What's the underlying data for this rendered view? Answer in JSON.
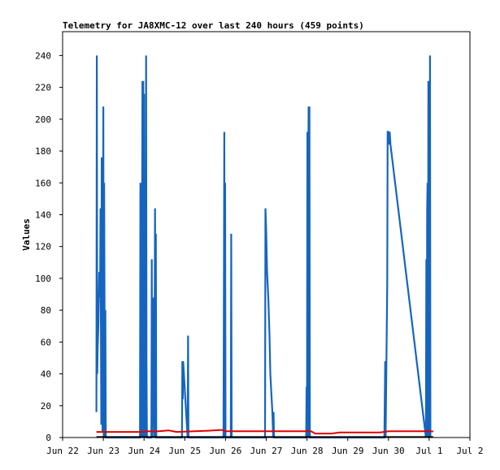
{
  "chart_data": {
    "type": "line",
    "title": "Telemetry for JA8XMC-12 over last 240 hours (459 points)",
    "ylabel": "Values",
    "xlabel": "",
    "ylim": [
      0,
      255
    ],
    "y_ticks": [
      0,
      20,
      40,
      60,
      80,
      100,
      120,
      140,
      160,
      180,
      200,
      220,
      240
    ],
    "x_ticks": [
      {
        "label": "Jun 22",
        "day": 0
      },
      {
        "label": "Jun 23",
        "day": 1
      },
      {
        "label": "Jun 24",
        "day": 2
      },
      {
        "label": "Jun 25",
        "day": 3
      },
      {
        "label": "Jun 26",
        "day": 4
      },
      {
        "label": "Jun 27",
        "day": 5
      },
      {
        "label": "Jun 28",
        "day": 6
      },
      {
        "label": "Jun 29",
        "day": 7
      },
      {
        "label": "Jun 30",
        "day": 8
      },
      {
        "label": "Jul 1",
        "day": 9
      },
      {
        "label": "Jul 2",
        "day": 10
      }
    ],
    "xlim": [
      0,
      10
    ],
    "grid": false,
    "series": [
      {
        "color": "#1565c0",
        "points": [
          [
            0.83,
            16
          ],
          [
            0.84,
            240
          ],
          [
            0.85,
            40
          ],
          [
            0.86,
            56
          ],
          [
            0.88,
            72
          ],
          [
            0.9,
            104
          ],
          [
            0.92,
            88
          ],
          [
            0.93,
            144
          ],
          [
            0.95,
            8
          ],
          [
            0.96,
            176
          ],
          [
            0.98,
            4
          ],
          [
            1.0,
            208
          ],
          [
            1.01,
            0
          ],
          [
            1.02,
            160
          ],
          [
            1.04,
            0
          ],
          [
            1.05,
            80
          ],
          [
            1.06,
            0
          ],
          [
            1.9,
            0
          ],
          [
            1.91,
            160
          ],
          [
            1.92,
            0
          ],
          [
            1.93,
            144
          ],
          [
            1.94,
            0
          ],
          [
            1.95,
            112
          ],
          [
            1.96,
            224
          ],
          [
            1.97,
            0
          ],
          [
            1.98,
            224
          ],
          [
            1.99,
            0
          ],
          [
            2.0,
            216
          ],
          [
            2.01,
            0
          ],
          [
            2.03,
            120
          ],
          [
            2.04,
            0
          ],
          [
            2.05,
            240
          ],
          [
            2.06,
            48
          ],
          [
            2.07,
            0
          ],
          [
            2.18,
            0
          ],
          [
            2.19,
            112
          ],
          [
            2.2,
            0
          ],
          [
            2.22,
            88
          ],
          [
            2.23,
            40
          ],
          [
            2.25,
            0
          ],
          [
            2.27,
            144
          ],
          [
            2.28,
            0
          ],
          [
            2.29,
            128
          ],
          [
            2.3,
            0
          ],
          [
            2.93,
            0
          ],
          [
            2.94,
            48
          ],
          [
            2.95,
            24
          ],
          [
            2.96,
            48
          ],
          [
            3.05,
            8
          ],
          [
            3.07,
            0
          ],
          [
            3.08,
            64
          ],
          [
            3.09,
            0
          ],
          [
            3.95,
            0
          ],
          [
            3.96,
            96
          ],
          [
            3.97,
            192
          ],
          [
            3.98,
            0
          ],
          [
            3.99,
            160
          ],
          [
            4.0,
            0
          ],
          [
            4.13,
            0
          ],
          [
            4.14,
            128
          ],
          [
            4.15,
            0
          ],
          [
            4.97,
            0
          ],
          [
            4.98,
            144
          ],
          [
            5.0,
            128
          ],
          [
            5.02,
            104
          ],
          [
            5.05,
            88
          ],
          [
            5.08,
            64
          ],
          [
            5.1,
            40
          ],
          [
            5.15,
            16
          ],
          [
            5.17,
            0
          ],
          [
            5.18,
            16
          ],
          [
            5.19,
            0
          ],
          [
            5.98,
            0
          ],
          [
            5.99,
            32
          ],
          [
            6.0,
            0
          ],
          [
            6.01,
            192
          ],
          [
            6.02,
            0
          ],
          [
            6.03,
            160
          ],
          [
            6.04,
            208
          ],
          [
            6.05,
            0
          ],
          [
            6.06,
            208
          ],
          [
            6.07,
            0
          ],
          [
            7.9,
            0
          ],
          [
            7.91,
            24
          ],
          [
            7.92,
            48
          ],
          [
            7.93,
            0
          ],
          [
            7.95,
            48
          ],
          [
            7.97,
            96
          ],
          [
            7.98,
            192
          ],
          [
            8.0,
            192
          ],
          [
            8.01,
            184
          ],
          [
            8.03,
            192
          ],
          [
            8.05,
            184
          ],
          [
            8.92,
            0
          ],
          [
            8.93,
            112
          ],
          [
            8.94,
            0
          ],
          [
            8.95,
            144
          ],
          [
            8.96,
            160
          ],
          [
            8.97,
            0
          ],
          [
            8.98,
            224
          ],
          [
            8.99,
            0
          ],
          [
            9.0,
            224
          ],
          [
            9.01,
            0
          ],
          [
            9.02,
            240
          ],
          [
            9.03,
            0
          ]
        ]
      },
      {
        "color": "#e00000",
        "points": [
          [
            0.83,
            3.5
          ],
          [
            1.9,
            3.5
          ],
          [
            2.1,
            4
          ],
          [
            2.3,
            3.8
          ],
          [
            2.6,
            4.5
          ],
          [
            2.8,
            3.5
          ],
          [
            3.1,
            3.8
          ],
          [
            3.5,
            4.2
          ],
          [
            3.9,
            4.8
          ],
          [
            4.0,
            4
          ],
          [
            5.0,
            4
          ],
          [
            6.1,
            4
          ],
          [
            6.2,
            2.5
          ],
          [
            6.6,
            2.5
          ],
          [
            6.8,
            3.2
          ],
          [
            7.8,
            3.2
          ],
          [
            8.0,
            4
          ],
          [
            9.0,
            4
          ],
          [
            9.1,
            3.8
          ]
        ]
      },
      {
        "color": "#000000",
        "points": [
          [
            0.83,
            0.3
          ],
          [
            9.1,
            0.3
          ]
        ]
      }
    ]
  }
}
